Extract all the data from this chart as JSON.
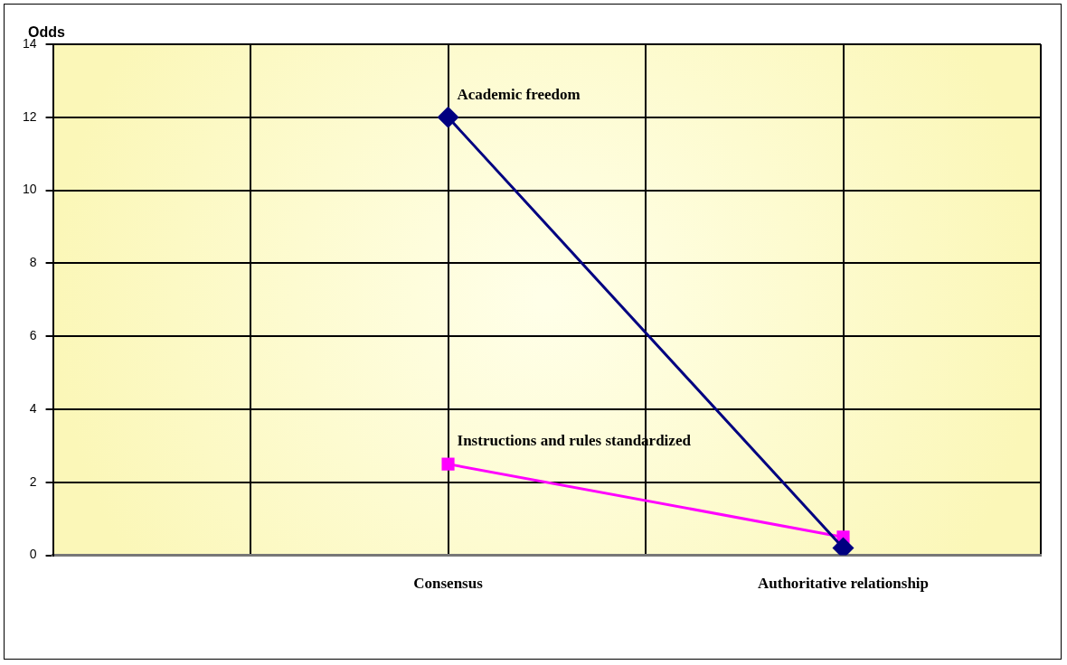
{
  "chart_data": {
    "type": "line",
    "ylabel": "Odds",
    "categories": [
      null,
      null,
      "Consensus",
      null,
      "Authoritative relationship",
      null
    ],
    "ylim": [
      0,
      14
    ],
    "yticks": [
      0,
      2,
      4,
      6,
      8,
      10,
      12,
      14
    ],
    "grid": true,
    "legend": false,
    "series": [
      {
        "name": "Academic freedom",
        "color": "#000080",
        "marker": "diamond",
        "values": [
          null,
          null,
          12,
          null,
          0.2,
          null
        ]
      },
      {
        "name": "Instructions and rules standardized",
        "color": "#ff00ff",
        "marker": "square",
        "values": [
          null,
          null,
          2.5,
          null,
          0.5,
          null
        ]
      }
    ]
  }
}
